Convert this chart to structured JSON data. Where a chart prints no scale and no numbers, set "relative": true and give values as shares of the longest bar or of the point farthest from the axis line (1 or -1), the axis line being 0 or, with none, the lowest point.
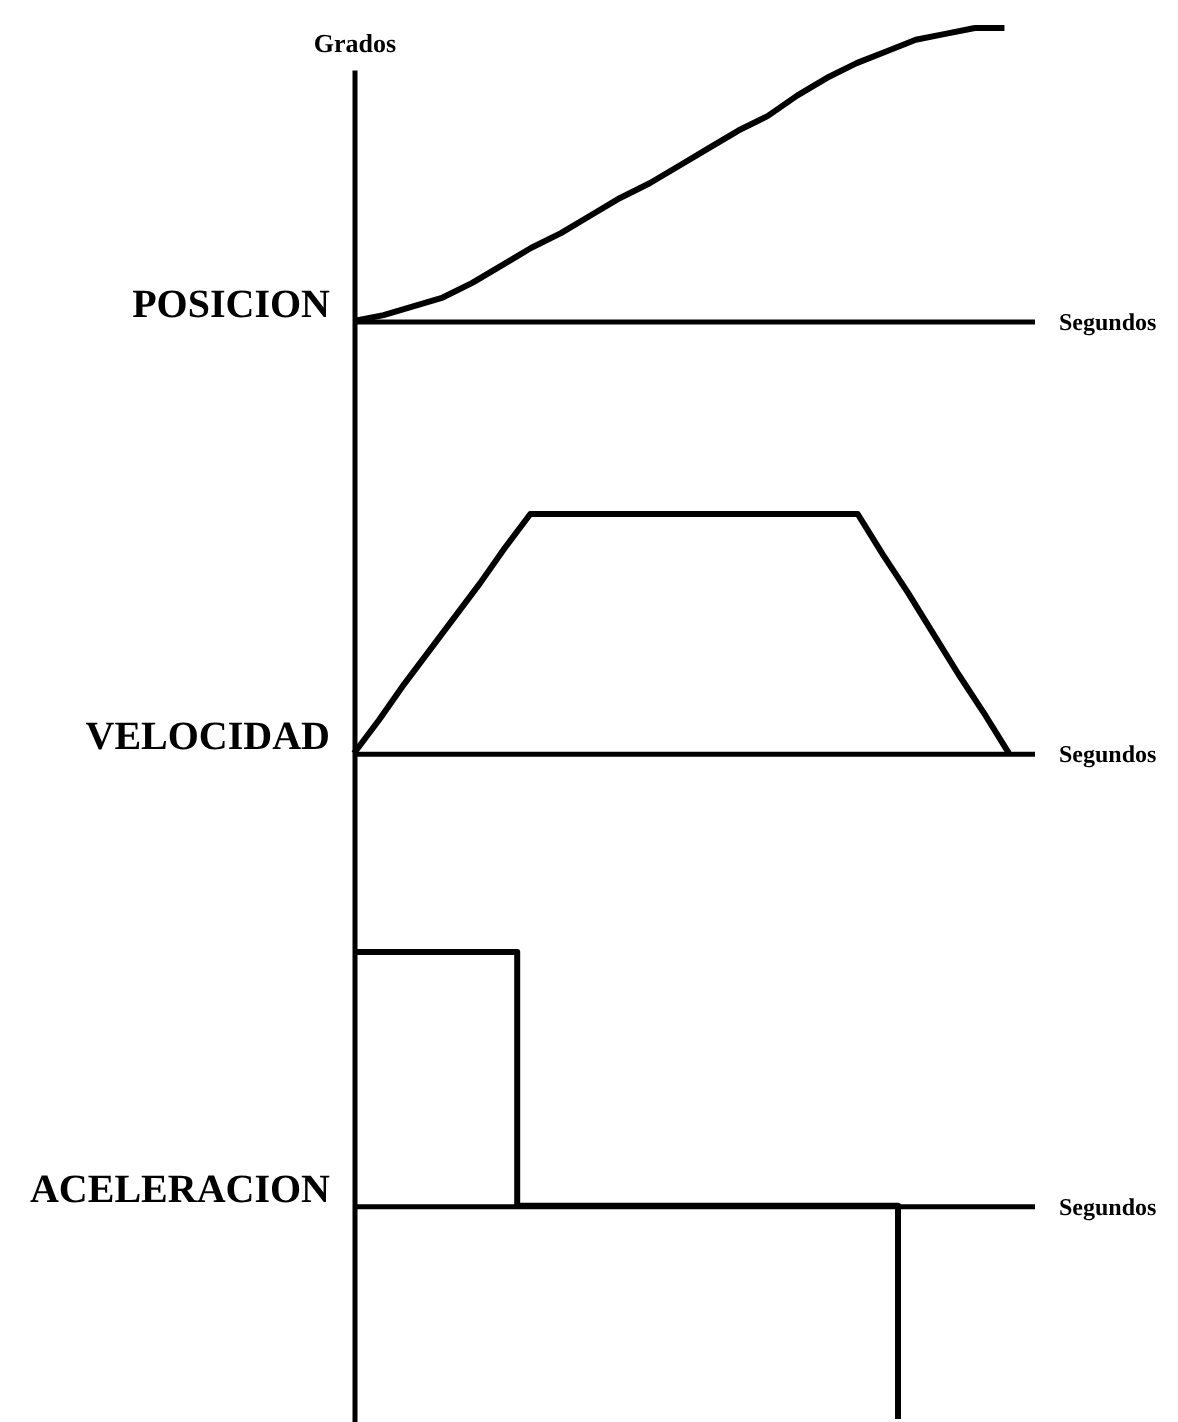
{
  "chart_data": [
    {
      "type": "line",
      "title": "POSICION",
      "ylabel": "Grados",
      "xlabel": "Segundos",
      "relative": true,
      "color": "#000000",
      "categories": [
        null,
        null,
        null,
        null,
        null,
        null,
        null,
        null,
        null,
        null,
        null,
        null,
        null,
        null,
        null,
        null,
        null,
        null,
        null,
        null,
        null,
        null,
        null,
        null
      ],
      "values": [
        0,
        0.02,
        0.05,
        0.08,
        0.13,
        0.19,
        0.25,
        0.3,
        0.36,
        0.42,
        0.47,
        0.53,
        0.59,
        0.65,
        0.7,
        0.77,
        0.83,
        0.88,
        0.92,
        0.96,
        0.98,
        1,
        1,
        null
      ]
    },
    {
      "type": "line",
      "title": "VELOCIDAD",
      "xlabel": "Segundos",
      "relative": true,
      "color": "#000000",
      "categories": [
        null,
        null,
        null,
        null,
        null,
        null,
        null,
        null,
        null,
        null,
        null,
        null,
        null,
        null,
        null,
        null,
        null,
        null,
        null,
        null,
        null,
        null,
        null,
        null,
        null,
        null,
        null,
        null
      ],
      "values": [
        0,
        0.14,
        0.29,
        0.43,
        0.57,
        0.71,
        0.86,
        1,
        1,
        1,
        1,
        1,
        1,
        1,
        1,
        1,
        1,
        1,
        1,
        1,
        1,
        0.83,
        0.67,
        0.5,
        0.33,
        0.17,
        0,
        null
      ]
    },
    {
      "type": "step",
      "title": "ACELERACION",
      "xlabel": "Segundos",
      "relative": true,
      "color": "#000000",
      "categories": [
        null,
        null,
        null,
        null,
        null,
        null,
        null,
        null,
        null,
        null,
        null,
        null,
        null,
        null,
        null,
        null,
        null,
        null,
        null,
        null,
        null,
        null,
        null,
        null,
        null,
        null
      ],
      "values": [
        1,
        1,
        1,
        1,
        1,
        1,
        0,
        0,
        0,
        0,
        0,
        0,
        0,
        0,
        0,
        0,
        0,
        0,
        0,
        0,
        -0.84,
        null,
        null,
        null,
        null,
        null
      ]
    }
  ]
}
